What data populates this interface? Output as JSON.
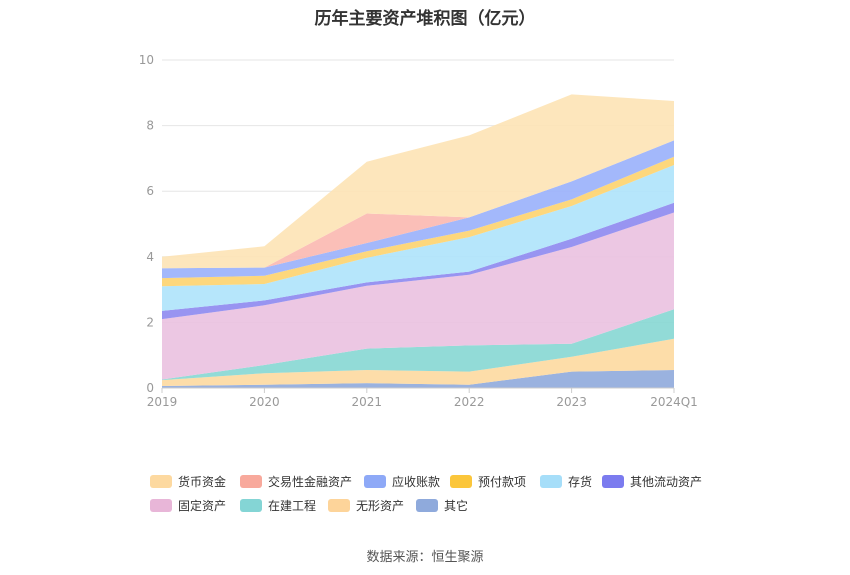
{
  "chart_data": {
    "type": "area",
    "stacked": true,
    "title": "历年主要资产堆积图（亿元）",
    "x": [
      "2019",
      "2020",
      "2021",
      "2022",
      "2023",
      "2024Q1"
    ],
    "ylim": [
      0,
      10
    ],
    "yticks": [
      0,
      2,
      4,
      6,
      8,
      10
    ],
    "grid": true,
    "legend_position": "bottom",
    "series": [
      {
        "name": "其它",
        "color": "#8faadc",
        "values": [
          0.06,
          0.1,
          0.15,
          0.1,
          0.5,
          0.55
        ]
      },
      {
        "name": "无形资产",
        "color": "#fdd9a0",
        "values": [
          0.18,
          0.35,
          0.4,
          0.4,
          0.45,
          0.95
        ]
      },
      {
        "name": "在建工程",
        "color": "#86d7d3",
        "values": [
          0.02,
          0.25,
          0.65,
          0.8,
          0.4,
          0.9
        ]
      },
      {
        "name": "固定资产",
        "color": "#eac1e0",
        "values": [
          1.84,
          1.82,
          1.92,
          2.15,
          2.95,
          2.95
        ]
      },
      {
        "name": "其他流动资产",
        "color": "#8d88f0",
        "values": [
          0.25,
          0.15,
          0.1,
          0.1,
          0.25,
          0.3
        ]
      },
      {
        "name": "存货",
        "color": "#aee3fb",
        "values": [
          0.75,
          0.5,
          0.75,
          1.05,
          1.0,
          1.15
        ]
      },
      {
        "name": "预付款项",
        "color": "#fdd36e",
        "values": [
          0.25,
          0.25,
          0.2,
          0.2,
          0.2,
          0.25
        ]
      },
      {
        "name": "应收账款",
        "color": "#99b0fb",
        "values": [
          0.3,
          0.25,
          0.25,
          0.4,
          0.55,
          0.5
        ]
      },
      {
        "name": "交易性金融资产",
        "color": "#fbb8b0",
        "values": [
          0.0,
          0.0,
          0.9,
          0.0,
          0.0,
          0.0
        ]
      },
      {
        "name": "货币资金",
        "color": "#fde3b5",
        "values": [
          0.35,
          0.65,
          1.58,
          2.5,
          2.65,
          1.2
        ]
      }
    ],
    "legend": [
      {
        "name": "货币资金",
        "color": "#fdd9a0"
      },
      {
        "name": "交易性金融资产",
        "color": "#f8a99c"
      },
      {
        "name": "应收账款",
        "color": "#8ea9f7"
      },
      {
        "name": "预付款项",
        "color": "#fbc63b"
      },
      {
        "name": "存货",
        "color": "#a6def9"
      },
      {
        "name": "其他流动资产",
        "color": "#7b7bef"
      },
      {
        "name": "固定资产",
        "color": "#e8b6d8"
      },
      {
        "name": "在建工程",
        "color": "#84d5d5"
      },
      {
        "name": "无形资产",
        "color": "#fdd49a"
      },
      {
        "name": "其它",
        "color": "#8faadc"
      }
    ]
  },
  "source": "数据来源：恒生聚源"
}
